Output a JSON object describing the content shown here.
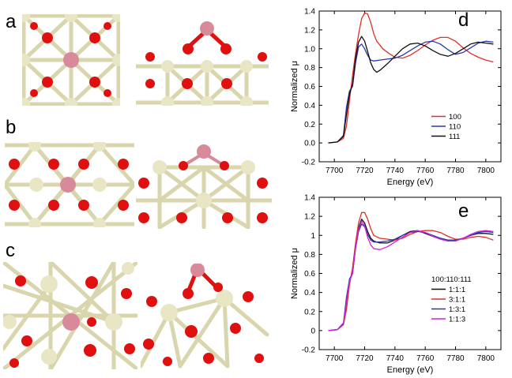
{
  "panels": {
    "a": {
      "letter": "a"
    },
    "b": {
      "letter": "b"
    },
    "c": {
      "letter": "c"
    }
  },
  "colors": {
    "oxygen": "#e01010",
    "metal": "#e8e6c4",
    "bond": "#d9d6ae",
    "adsorbate": "#d98a9a"
  },
  "chart_data": [
    {
      "panel": "d",
      "type": "line",
      "title": "",
      "xlabel": "Energy (eV)",
      "ylabel": "Normalized μ",
      "xlim": [
        7690,
        7810
      ],
      "ylim": [
        -0.2,
        1.4
      ],
      "xticks": [
        7700,
        7720,
        7740,
        7760,
        7780,
        7800
      ],
      "yticks": [
        -0.2,
        0.0,
        0.2,
        0.4,
        0.6,
        0.8,
        1.0,
        1.2,
        1.4
      ],
      "yticklabels": [
        "-0.2",
        "0.0",
        "0.2",
        "0.4",
        "0.6",
        "0.8",
        "1.0",
        "1.2",
        "1.4"
      ],
      "legend_title": "",
      "legend_position": "lower-right",
      "series": [
        {
          "name": "100",
          "color": "#e0302a",
          "x": [
            7696,
            7702,
            7706,
            7708,
            7710,
            7712,
            7714,
            7716,
            7718,
            7720,
            7722,
            7724,
            7726,
            7728,
            7732,
            7736,
            7740,
            7745,
            7750,
            7755,
            7760,
            7765,
            7770,
            7775,
            7780,
            7785,
            7790,
            7795,
            7800,
            7805
          ],
          "y": [
            0.0,
            0.01,
            0.05,
            0.18,
            0.45,
            0.72,
            0.95,
            1.15,
            1.32,
            1.38,
            1.37,
            1.28,
            1.16,
            1.08,
            1.0,
            0.95,
            0.91,
            0.9,
            0.93,
            0.98,
            1.04,
            1.09,
            1.12,
            1.12,
            1.08,
            1.01,
            0.95,
            0.91,
            0.88,
            0.86
          ]
        },
        {
          "name": "110",
          "color": "#2a3aa8",
          "x": [
            7696,
            7702,
            7706,
            7708,
            7710,
            7712,
            7714,
            7716,
            7718,
            7720,
            7722,
            7724,
            7726,
            7730,
            7735,
            7740,
            7745,
            7750,
            7755,
            7760,
            7765,
            7770,
            7775,
            7780,
            7785,
            7790,
            7795,
            7800,
            7805
          ],
          "y": [
            0.0,
            0.01,
            0.08,
            0.38,
            0.55,
            0.6,
            0.85,
            1.02,
            1.05,
            1.0,
            0.93,
            0.88,
            0.87,
            0.88,
            0.89,
            0.9,
            0.93,
            0.98,
            1.03,
            1.07,
            1.08,
            1.05,
            0.99,
            0.94,
            0.96,
            1.01,
            1.06,
            1.08,
            1.07
          ]
        },
        {
          "name": "111",
          "color": "#111111",
          "x": [
            7696,
            7702,
            7706,
            7708,
            7710,
            7712,
            7714,
            7716,
            7718,
            7720,
            7722,
            7724,
            7726,
            7728,
            7730,
            7735,
            7740,
            7745,
            7750,
            7755,
            7760,
            7765,
            7770,
            7775,
            7780,
            7785,
            7790,
            7795,
            7800,
            7805
          ],
          "y": [
            0.0,
            0.01,
            0.07,
            0.3,
            0.52,
            0.62,
            0.9,
            1.07,
            1.13,
            1.08,
            0.97,
            0.85,
            0.78,
            0.75,
            0.77,
            0.84,
            0.92,
            1.0,
            1.05,
            1.06,
            1.03,
            0.98,
            0.94,
            0.92,
            0.95,
            1.0,
            1.05,
            1.07,
            1.06,
            1.05
          ]
        }
      ]
    },
    {
      "panel": "e",
      "type": "line",
      "title": "",
      "xlabel": "Energy (eV)",
      "ylabel": "Normalized μ",
      "xlim": [
        7690,
        7810
      ],
      "ylim": [
        -0.2,
        1.4
      ],
      "xticks": [
        7700,
        7720,
        7740,
        7760,
        7780,
        7800
      ],
      "yticks": [
        -0.2,
        0.0,
        0.2,
        0.4,
        0.6,
        0.8,
        1.0,
        1.2,
        1.4
      ],
      "yticklabels": [
        "-0.2",
        "0",
        "0.2",
        "0.4",
        "0.6",
        "0.8",
        "1",
        "1.2",
        "1.4"
      ],
      "legend_title": "100:110:111",
      "legend_position": "lower-right",
      "series": [
        {
          "name": "1:1:1",
          "color": "#111111",
          "x": [
            7696,
            7702,
            7706,
            7708,
            7710,
            7712,
            7714,
            7716,
            7718,
            7720,
            7722,
            7724,
            7726,
            7730,
            7735,
            7740,
            7745,
            7750,
            7755,
            7760,
            7765,
            7770,
            7775,
            7780,
            7785,
            7790,
            7795,
            7800,
            7805
          ],
          "y": [
            0.0,
            0.01,
            0.07,
            0.3,
            0.52,
            0.6,
            0.88,
            1.08,
            1.17,
            1.13,
            1.04,
            0.97,
            0.94,
            0.92,
            0.92,
            0.95,
            1.0,
            1.04,
            1.05,
            1.02,
            0.99,
            0.97,
            0.95,
            0.95,
            0.97,
            1.0,
            1.02,
            1.02,
            1.01
          ]
        },
        {
          "name": "3:1:1",
          "color": "#e0302a",
          "x": [
            7696,
            7702,
            7706,
            7708,
            7710,
            7712,
            7714,
            7716,
            7718,
            7720,
            7722,
            7724,
            7726,
            7730,
            7735,
            7740,
            7745,
            7750,
            7755,
            7760,
            7765,
            7770,
            7775,
            7780,
            7785,
            7790,
            7795,
            7800,
            7805
          ],
          "y": [
            0.0,
            0.01,
            0.06,
            0.22,
            0.48,
            0.66,
            0.92,
            1.13,
            1.24,
            1.24,
            1.17,
            1.07,
            1.0,
            0.97,
            0.96,
            0.95,
            0.97,
            1.01,
            1.04,
            1.05,
            1.05,
            1.03,
            0.99,
            0.96,
            0.96,
            0.98,
            0.99,
            0.98,
            0.95
          ]
        },
        {
          "name": "1:3:1",
          "color": "#2a3aa8",
          "x": [
            7696,
            7702,
            7706,
            7708,
            7710,
            7712,
            7714,
            7716,
            7718,
            7720,
            7722,
            7724,
            7726,
            7730,
            7735,
            7740,
            7745,
            7750,
            7755,
            7760,
            7765,
            7770,
            7775,
            7780,
            7785,
            7790,
            7795,
            7800,
            7805
          ],
          "y": [
            0.0,
            0.01,
            0.08,
            0.35,
            0.54,
            0.6,
            0.86,
            1.04,
            1.12,
            1.09,
            1.01,
            0.95,
            0.93,
            0.93,
            0.94,
            0.96,
            1.0,
            1.03,
            1.04,
            1.03,
            1.0,
            0.97,
            0.95,
            0.95,
            0.97,
            1.0,
            1.03,
            1.04,
            1.03
          ]
        },
        {
          "name": "1:1:3",
          "color": "#d020d8",
          "x": [
            7696,
            7702,
            7706,
            7708,
            7710,
            7712,
            7714,
            7716,
            7718,
            7720,
            7722,
            7724,
            7726,
            7730,
            7735,
            7740,
            7745,
            7750,
            7755,
            7760,
            7765,
            7770,
            7775,
            7780,
            7785,
            7790,
            7795,
            7800,
            7805
          ],
          "y": [
            0.0,
            0.01,
            0.07,
            0.3,
            0.52,
            0.6,
            0.87,
            1.06,
            1.15,
            1.1,
            0.98,
            0.9,
            0.86,
            0.85,
            0.88,
            0.93,
            0.98,
            1.03,
            1.05,
            1.03,
            0.99,
            0.96,
            0.94,
            0.94,
            0.97,
            1.01,
            1.04,
            1.05,
            1.04
          ]
        }
      ]
    }
  ]
}
